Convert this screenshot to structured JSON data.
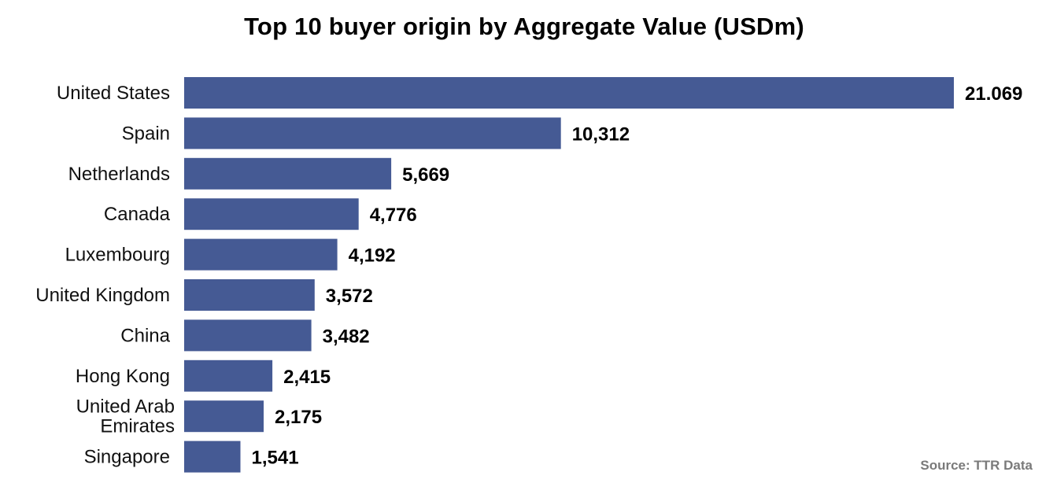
{
  "chart_data": {
    "type": "bar",
    "orientation": "horizontal",
    "title": "Top 10 buyer origin by Aggregate Value (USDm)",
    "categories": [
      "United States",
      "Spain",
      "Netherlands",
      "Canada",
      "Luxembourg",
      "United Kingdom",
      "China",
      "Hong Kong",
      "United Arab Emirates",
      "Singapore"
    ],
    "category_label_lines": [
      [
        "United States"
      ],
      [
        "Spain"
      ],
      [
        "Netherlands"
      ],
      [
        "Canada"
      ],
      [
        "Luxembourg"
      ],
      [
        "United Kingdom"
      ],
      [
        "China"
      ],
      [
        "Hong Kong"
      ],
      [
        "United Arab",
        "Emirates"
      ],
      [
        "Singapore"
      ]
    ],
    "values": [
      21.069,
      10.312,
      5.669,
      4.776,
      4.192,
      3.572,
      3.482,
      2.415,
      2.175,
      1.541
    ],
    "value_labels": [
      "21.069",
      "10,312",
      "5,669",
      "4,776",
      "4,192",
      "3,572",
      "3,482",
      "2,415",
      "2,175",
      "1,541"
    ],
    "xlabel": "",
    "ylabel": "",
    "grid": false,
    "legend": "none",
    "bar_color": "#455a94",
    "source": "Source: TTR Data"
  }
}
